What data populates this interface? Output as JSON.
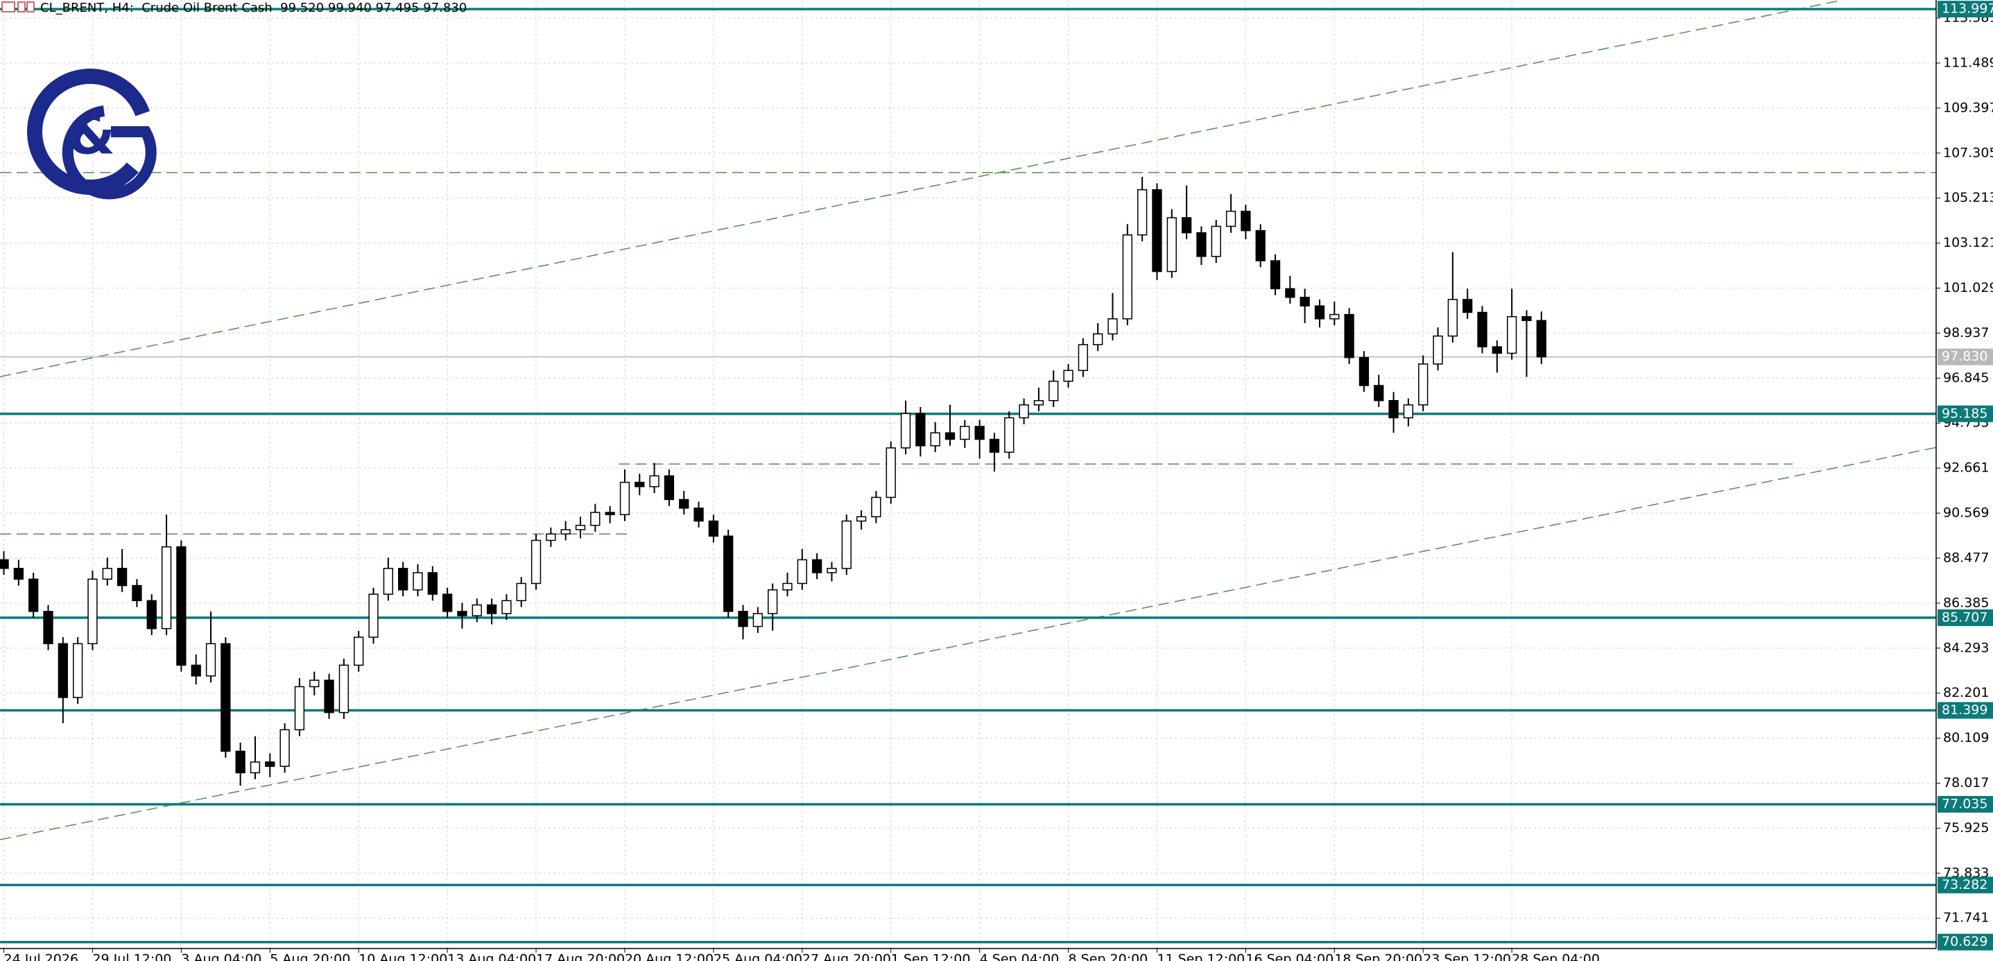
{
  "chart_data": {
    "type": "candlestick",
    "header": "CL_BRENT, H4:  Crude Oil Brent Cash  99.520 99.940 97.495 97.830",
    "logo_symbol": "&",
    "categories": [
      "24 Jul 2026",
      null,
      null,
      null,
      null,
      null,
      "29 Jul 12:00",
      null,
      null,
      null,
      null,
      null,
      "3 Aug 04:00",
      null,
      null,
      null,
      null,
      null,
      "5 Aug 20:00",
      null,
      null,
      null,
      null,
      null,
      "10 Aug 12:00",
      null,
      null,
      null,
      null,
      null,
      "13 Aug 04:00",
      null,
      null,
      null,
      null,
      null,
      "17 Aug 20:00",
      null,
      null,
      null,
      null,
      null,
      "20 Aug 12:00",
      null,
      null,
      null,
      null,
      null,
      "25 Aug 04:00",
      null,
      null,
      null,
      null,
      null,
      "27 Aug 20:00",
      null,
      null,
      null,
      null,
      null,
      "1 Sep 12:00",
      null,
      null,
      null,
      null,
      null,
      "4 Sep 04:00",
      null,
      null,
      null,
      null,
      null,
      "8 Sep 20:00",
      null,
      null,
      null,
      null,
      null,
      "11 Sep 12:00",
      null,
      null,
      null,
      null,
      null,
      "16 Sep 04:00",
      null,
      null,
      null,
      null,
      null,
      "18 Sep 20:00",
      null,
      null,
      null,
      null,
      null,
      "23 Sep 12:00",
      null,
      null,
      null,
      null,
      null,
      "28 Sep 04:00",
      null,
      null
    ],
    "ohlc": [
      [
        88.4,
        88.8,
        87.7,
        88.0
      ],
      [
        88.0,
        88.4,
        87.2,
        87.5
      ],
      [
        87.5,
        87.8,
        85.7,
        86.0
      ],
      [
        86.0,
        86.3,
        84.2,
        84.5
      ],
      [
        84.5,
        84.8,
        80.8,
        82.0
      ],
      [
        82.0,
        84.8,
        81.7,
        84.5
      ],
      [
        84.5,
        87.9,
        84.2,
        87.5
      ],
      [
        87.5,
        88.5,
        87.2,
        88.0
      ],
      [
        88.0,
        88.9,
        86.9,
        87.2
      ],
      [
        87.2,
        87.5,
        86.2,
        86.5
      ],
      [
        86.5,
        86.8,
        84.9,
        85.2
      ],
      [
        85.2,
        90.5,
        84.9,
        89.0
      ],
      [
        89.0,
        89.3,
        83.2,
        83.5
      ],
      [
        83.5,
        84.0,
        82.6,
        83.0
      ],
      [
        83.0,
        86.0,
        82.7,
        84.5
      ],
      [
        84.5,
        84.8,
        79.2,
        79.5
      ],
      [
        79.5,
        79.9,
        77.9,
        78.5
      ],
      [
        78.5,
        80.2,
        78.2,
        79.0
      ],
      [
        79.0,
        79.4,
        78.3,
        78.8
      ],
      [
        78.8,
        80.8,
        78.5,
        80.5
      ],
      [
        80.5,
        82.9,
        80.2,
        82.5
      ],
      [
        82.5,
        83.2,
        82.1,
        82.8
      ],
      [
        82.8,
        83.1,
        81.0,
        81.3
      ],
      [
        81.3,
        83.8,
        81.0,
        83.5
      ],
      [
        83.5,
        85.1,
        83.2,
        84.8
      ],
      [
        84.8,
        87.1,
        84.5,
        86.8
      ],
      [
        86.8,
        88.5,
        86.5,
        88.0
      ],
      [
        88.0,
        88.3,
        86.7,
        87.0
      ],
      [
        87.0,
        88.2,
        86.7,
        87.8
      ],
      [
        87.8,
        88.1,
        86.5,
        86.8
      ],
      [
        86.8,
        87.1,
        85.7,
        86.0
      ],
      [
        86.0,
        86.4,
        85.2,
        85.8
      ],
      [
        85.8,
        86.6,
        85.5,
        86.3
      ],
      [
        86.3,
        86.6,
        85.4,
        85.9
      ],
      [
        85.9,
        86.8,
        85.6,
        86.5
      ],
      [
        86.5,
        87.6,
        86.2,
        87.3
      ],
      [
        87.3,
        89.6,
        87.0,
        89.3
      ],
      [
        89.3,
        89.9,
        89.0,
        89.6
      ],
      [
        89.6,
        90.2,
        89.3,
        89.8
      ],
      [
        89.8,
        90.4,
        89.4,
        90.0
      ],
      [
        90.0,
        91.0,
        89.7,
        90.6
      ],
      [
        90.6,
        90.9,
        90.1,
        90.5
      ],
      [
        90.5,
        92.6,
        90.2,
        92.0
      ],
      [
        92.0,
        92.4,
        91.4,
        91.8
      ],
      [
        91.8,
        92.9,
        91.5,
        92.3
      ],
      [
        92.3,
        92.6,
        90.9,
        91.2
      ],
      [
        91.2,
        91.6,
        90.5,
        90.8
      ],
      [
        90.8,
        91.1,
        89.9,
        90.2
      ],
      [
        90.2,
        90.5,
        89.2,
        89.5
      ],
      [
        89.5,
        89.8,
        85.7,
        86.0
      ],
      [
        86.0,
        86.3,
        84.7,
        85.3
      ],
      [
        85.3,
        86.2,
        85.0,
        85.9
      ],
      [
        85.9,
        87.3,
        85.1,
        87.0
      ],
      [
        87.0,
        87.8,
        86.7,
        87.3
      ],
      [
        87.3,
        88.9,
        87.0,
        88.4
      ],
      [
        88.4,
        88.7,
        87.5,
        87.8
      ],
      [
        87.8,
        88.3,
        87.4,
        88.0
      ],
      [
        88.0,
        90.5,
        87.7,
        90.2
      ],
      [
        90.2,
        90.7,
        89.8,
        90.4
      ],
      [
        90.4,
        91.6,
        90.1,
        91.3
      ],
      [
        91.3,
        93.9,
        91.0,
        93.6
      ],
      [
        93.6,
        95.8,
        93.3,
        95.2
      ],
      [
        95.2,
        95.5,
        93.2,
        93.7
      ],
      [
        93.7,
        94.8,
        93.4,
        94.3
      ],
      [
        94.3,
        95.6,
        93.7,
        94.0
      ],
      [
        94.0,
        94.9,
        93.6,
        94.6
      ],
      [
        94.6,
        94.9,
        93.1,
        94.0
      ],
      [
        94.0,
        94.3,
        92.5,
        93.4
      ],
      [
        93.4,
        95.3,
        93.1,
        95.0
      ],
      [
        95.0,
        95.9,
        94.7,
        95.6
      ],
      [
        95.6,
        96.4,
        95.3,
        95.8
      ],
      [
        95.8,
        97.2,
        95.5,
        96.7
      ],
      [
        96.7,
        97.5,
        96.4,
        97.2
      ],
      [
        97.2,
        98.7,
        96.9,
        98.4
      ],
      [
        98.4,
        99.4,
        98.1,
        98.9
      ],
      [
        98.9,
        100.8,
        98.6,
        99.6
      ],
      [
        99.6,
        104.0,
        99.3,
        103.5
      ],
      [
        103.5,
        106.2,
        103.2,
        105.6
      ],
      [
        105.6,
        105.9,
        101.4,
        101.8
      ],
      [
        101.8,
        104.7,
        101.5,
        104.3
      ],
      [
        104.3,
        105.8,
        103.3,
        103.6
      ],
      [
        103.6,
        103.9,
        102.1,
        102.5
      ],
      [
        102.5,
        104.2,
        102.2,
        103.9
      ],
      [
        103.9,
        105.4,
        103.6,
        104.6
      ],
      [
        104.6,
        104.9,
        103.3,
        103.7
      ],
      [
        103.7,
        104.0,
        102.0,
        102.3
      ],
      [
        102.3,
        102.6,
        100.7,
        101.0
      ],
      [
        101.0,
        101.6,
        100.3,
        100.6
      ],
      [
        100.6,
        101.0,
        99.4,
        100.2
      ],
      [
        100.2,
        100.5,
        99.2,
        99.6
      ],
      [
        99.6,
        100.4,
        99.3,
        99.8
      ],
      [
        99.8,
        100.1,
        97.5,
        97.8
      ],
      [
        97.8,
        98.1,
        96.2,
        96.5
      ],
      [
        96.5,
        97.0,
        95.5,
        95.8
      ],
      [
        95.8,
        96.2,
        94.3,
        95.0
      ],
      [
        95.0,
        95.9,
        94.6,
        95.6
      ],
      [
        95.6,
        97.9,
        95.3,
        97.5
      ],
      [
        97.5,
        99.2,
        97.2,
        98.8
      ],
      [
        98.8,
        102.7,
        98.5,
        100.5
      ],
      [
        100.5,
        101.0,
        99.6,
        99.9
      ],
      [
        99.9,
        100.2,
        98.0,
        98.3
      ],
      [
        98.3,
        98.6,
        97.1,
        98.0
      ],
      [
        98.0,
        101.0,
        97.7,
        99.7
      ],
      [
        99.7,
        100.0,
        96.9,
        99.52
      ],
      [
        99.52,
        99.94,
        97.495,
        97.83
      ]
    ],
    "xlim": [
      -0.26,
      130.7
    ],
    "ylim": [
      70.33,
      114.42
    ],
    "yticks": [
      113.581,
      111.489,
      109.397,
      107.305,
      105.213,
      103.121,
      101.029,
      98.937,
      96.845,
      94.753,
      92.661,
      90.569,
      88.477,
      86.385,
      84.293,
      82.201,
      80.109,
      78.017,
      75.925,
      73.833,
      71.741
    ],
    "grid": true,
    "colors": {
      "up": "#ffffff",
      "down": "#000000",
      "outline": "#000000",
      "level": "#0b7a78",
      "dashed": "#4f8f4f",
      "current": "#b8b8b8",
      "grid": "#d0d0d0",
      "logo": "#1c2a8c"
    },
    "levels": [
      113.997,
      95.185,
      85.707,
      81.399,
      77.035,
      73.282,
      70.629
    ],
    "current_price": {
      "value": 97.83,
      "label": "97.830"
    },
    "hlines": [
      {
        "price": 106.4,
        "from": -0.26,
        "to": 130.7
      },
      {
        "price": 92.85,
        "from": 41.6,
        "to": 121
      },
      {
        "price": 89.6,
        "from": -0.26,
        "to": 42.3
      }
    ],
    "trendlines": [
      {
        "from": [
          -0.26,
          96.91
        ],
        "to": [
          124.4,
          114.42
        ]
      },
      {
        "from": [
          -0.26,
          75.39
        ],
        "to": [
          130.7,
          93.62
        ]
      }
    ]
  }
}
